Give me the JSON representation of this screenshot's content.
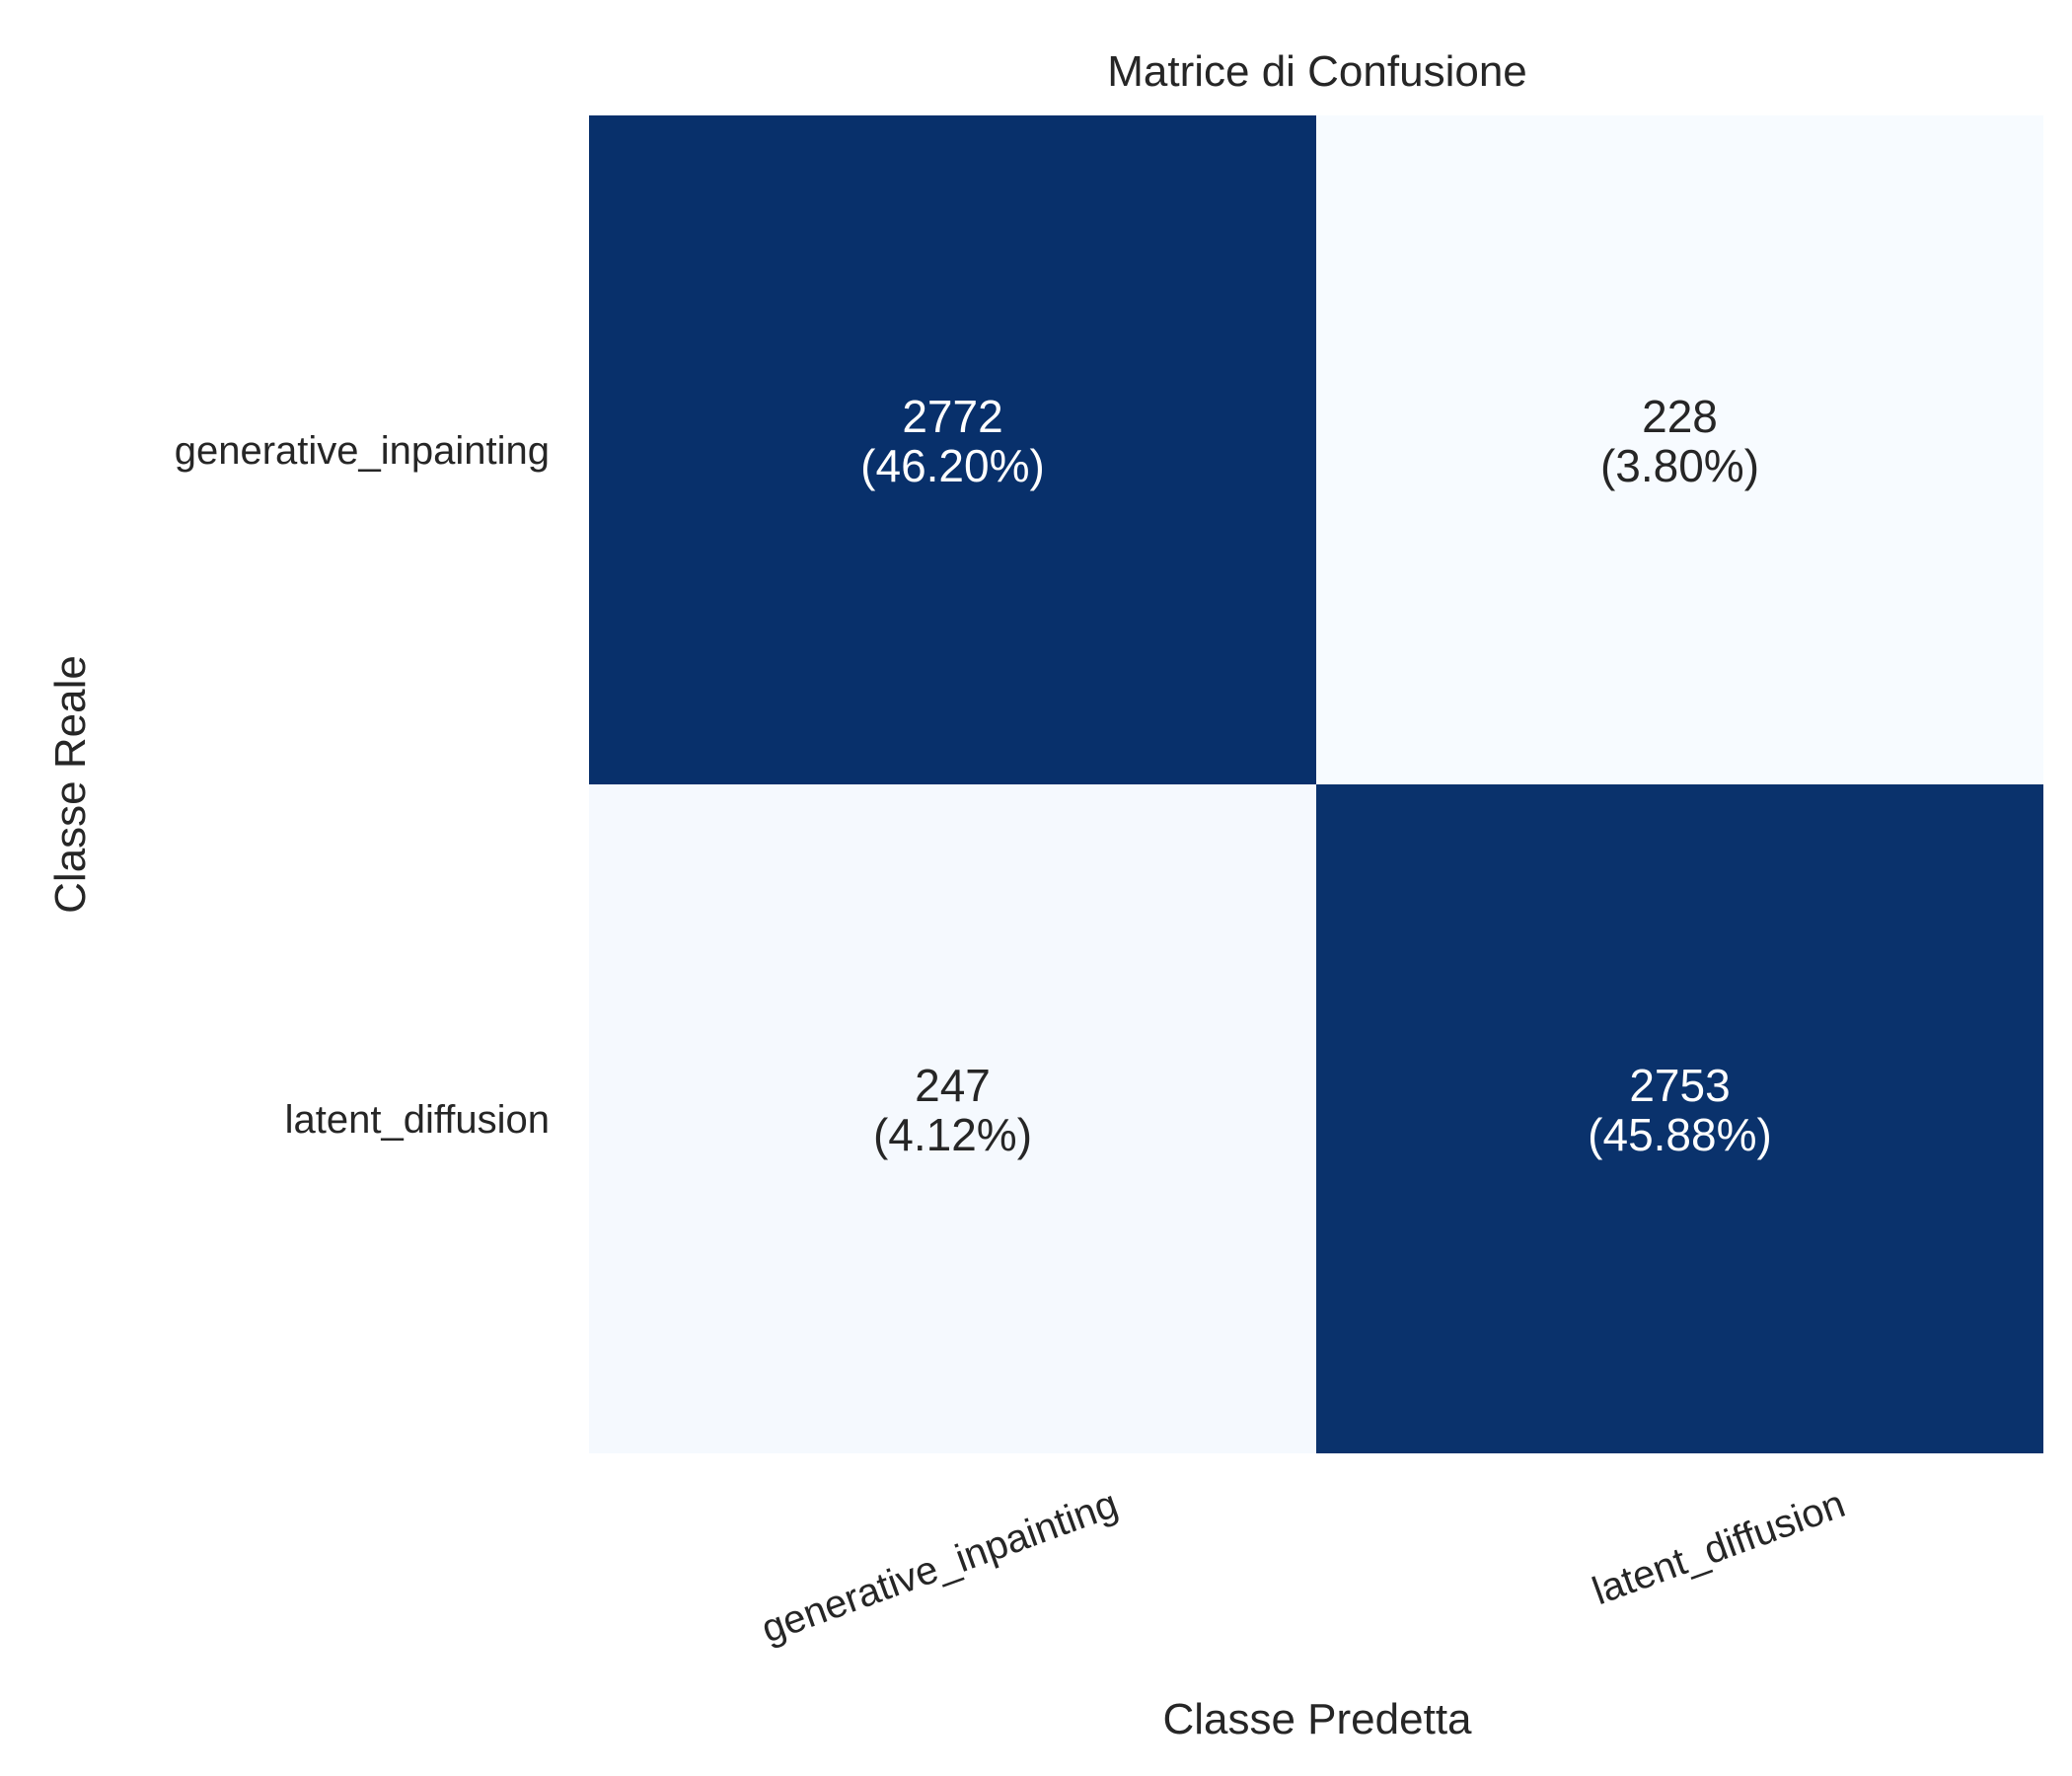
{
  "chart_data": {
    "type": "heatmap",
    "title": "Matrice di Confusione",
    "xlabel": "Classe Predetta",
    "ylabel": "Classe Reale",
    "x_categories": [
      "generative_inpainting",
      "latent_diffusion"
    ],
    "y_categories": [
      "generative_inpainting",
      "latent_diffusion"
    ],
    "values": [
      [
        2772,
        228
      ],
      [
        247,
        2753
      ]
    ],
    "percent_labels": [
      [
        "(46.20%)",
        "(3.80%)"
      ],
      [
        "(4.12%)",
        "(45.88%)"
      ]
    ],
    "colormap": "Blues",
    "color_low": "#f7fbff",
    "color_high": "#08306b",
    "text_color_dark_cell": "#ffffff",
    "text_color_light_cell": "#262626",
    "colorbar": false,
    "x_tick_rotation": "rotated",
    "grid": false
  }
}
